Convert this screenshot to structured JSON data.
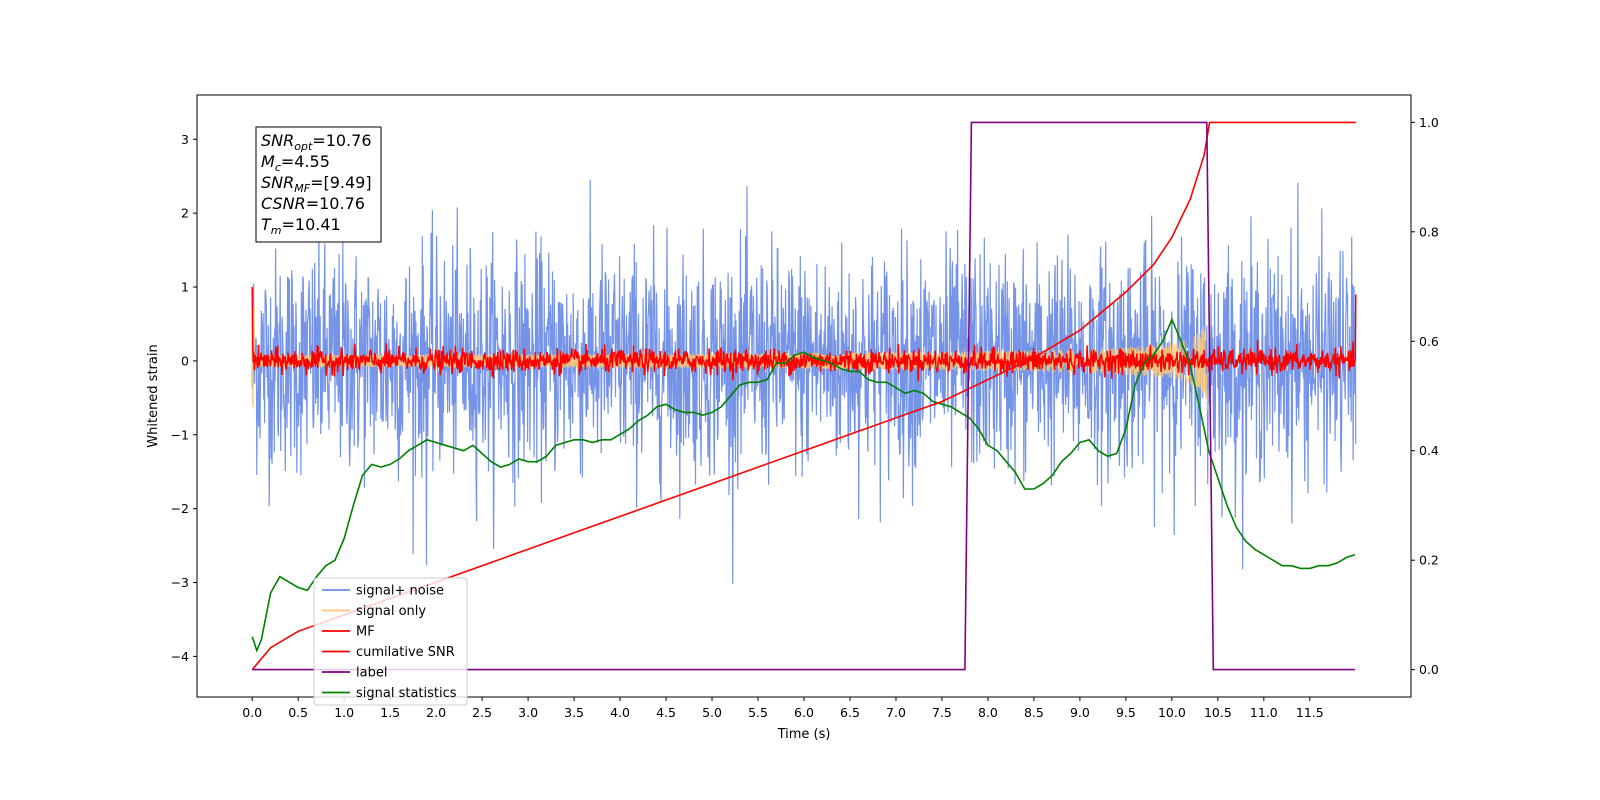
{
  "chart_data": {
    "type": "line",
    "title": "",
    "xlabel": "Time (s)",
    "ylabel": "Whitened strain",
    "xlim": [
      -0.6,
      12.6
    ],
    "ylim_left": [
      -4.55,
      3.6
    ],
    "ylim_right": [
      -0.05,
      1.05
    ],
    "grid": false,
    "legend_location": "lower-left",
    "x_ticks": [
      0.0,
      0.5,
      1.0,
      1.5,
      2.0,
      2.5,
      3.0,
      3.5,
      4.0,
      4.5,
      5.0,
      5.5,
      6.0,
      6.5,
      7.0,
      7.5,
      8.0,
      8.5,
      9.0,
      9.5,
      10.0,
      10.5,
      11.0,
      11.5
    ],
    "x_tick_labels": [
      "0.0",
      "0.5",
      "1.0",
      "1.5",
      "2.0",
      "2.5",
      "3.0",
      "3.5",
      "4.0",
      "4.5",
      "5.0",
      "5.5",
      "6.0",
      "6.5",
      "7.0",
      "7.5",
      "8.0",
      "8.5",
      "9.0",
      "9.5",
      "10.0",
      "10.5",
      "11.0",
      "11.5"
    ],
    "y_left_ticks": [
      3,
      2,
      1,
      0,
      -1,
      -2,
      -3,
      -4
    ],
    "y_left_tick_labels": [
      "3",
      "2",
      "1",
      "0",
      "−1",
      "−2",
      "−3",
      "−4"
    ],
    "y_right_ticks": [
      1.0,
      0.8,
      0.6,
      0.4,
      0.2,
      0.0
    ],
    "y_right_tick_labels": [
      "1.0",
      "0.8",
      "0.6",
      "0.4",
      "0.2",
      "0.0"
    ],
    "annotation": {
      "lines": [
        {
          "sym": "SNR",
          "sub": "opt",
          "val": "=10.76"
        },
        {
          "sym": "M",
          "sub": "c",
          "val": "=4.55"
        },
        {
          "sym": "SNR",
          "sub": "MF",
          "val": "=[9.49]"
        },
        {
          "sym": "CSNR",
          "sub": "",
          "val": "=10.76"
        },
        {
          "sym": "T",
          "sub": "m",
          "val": "=10.41"
        }
      ]
    },
    "series": [
      {
        "name": "signal+ noise",
        "color": "#6e8ee6",
        "axis": "left",
        "kind": "noise",
        "x_range": [
          0.0,
          12.0
        ],
        "spread": 0.75
      },
      {
        "name": "signal only",
        "color": "#ffc870",
        "axis": "left",
        "kind": "chirp",
        "x_range": [
          0.0,
          10.41
        ]
      },
      {
        "name": "MF",
        "color": "#ff0000",
        "axis": "left",
        "kind": "mf-noise",
        "x_range": [
          0.0,
          12.0
        ]
      },
      {
        "name": "cumilative SNR",
        "color": "#ff0000",
        "axis": "right",
        "x": [
          0.0,
          0.2,
          0.5,
          1.0,
          1.5,
          2.0,
          2.5,
          3.0,
          3.5,
          4.0,
          4.5,
          5.0,
          5.5,
          6.0,
          6.5,
          7.0,
          7.5,
          8.0,
          8.5,
          9.0,
          9.5,
          9.8,
          10.0,
          10.2,
          10.35,
          10.41,
          12.0
        ],
        "y": [
          0.0,
          0.04,
          0.07,
          0.1,
          0.13,
          0.16,
          0.19,
          0.22,
          0.25,
          0.28,
          0.31,
          0.34,
          0.37,
          0.4,
          0.43,
          0.46,
          0.49,
          0.53,
          0.57,
          0.62,
          0.69,
          0.74,
          0.79,
          0.86,
          0.94,
          1.0,
          1.0
        ]
      },
      {
        "name": "label",
        "color": "#800080",
        "axis": "right",
        "x": [
          0.0,
          7.75,
          7.82,
          10.38,
          10.45,
          11.99
        ],
        "y": [
          0.0,
          0.0,
          1.0,
          1.0,
          0.0,
          0.0
        ]
      },
      {
        "name": "signal statistics",
        "color": "#008000",
        "axis": "right",
        "x": [
          0.0,
          0.05,
          0.1,
          0.2,
          0.3,
          0.4,
          0.5,
          0.6,
          0.7,
          0.8,
          0.9,
          1.0,
          1.1,
          1.2,
          1.3,
          1.4,
          1.5,
          1.6,
          1.7,
          1.8,
          1.9,
          2.0,
          2.1,
          2.2,
          2.3,
          2.4,
          2.5,
          2.6,
          2.7,
          2.8,
          2.9,
          3.0,
          3.1,
          3.2,
          3.3,
          3.4,
          3.5,
          3.6,
          3.7,
          3.8,
          3.9,
          4.0,
          4.1,
          4.2,
          4.3,
          4.4,
          4.5,
          4.6,
          4.7,
          4.8,
          4.9,
          5.0,
          5.1,
          5.2,
          5.3,
          5.4,
          5.5,
          5.6,
          5.7,
          5.8,
          5.9,
          6.0,
          6.1,
          6.2,
          6.3,
          6.4,
          6.5,
          6.6,
          6.7,
          6.8,
          6.9,
          7.0,
          7.1,
          7.2,
          7.3,
          7.4,
          7.5,
          7.6,
          7.7,
          7.8,
          7.9,
          8.0,
          8.1,
          8.2,
          8.3,
          8.4,
          8.5,
          8.6,
          8.7,
          8.8,
          8.9,
          9.0,
          9.1,
          9.2,
          9.3,
          9.4,
          9.5,
          9.6,
          9.7,
          9.8,
          9.9,
          10.0,
          10.1,
          10.2,
          10.3,
          10.4,
          10.5,
          10.6,
          10.7,
          10.8,
          10.9,
          11.0,
          11.1,
          11.2,
          11.3,
          11.4,
          11.5,
          11.6,
          11.7,
          11.8,
          11.9,
          11.99
        ],
        "y": [
          0.06,
          0.035,
          0.055,
          0.14,
          0.17,
          0.16,
          0.15,
          0.145,
          0.17,
          0.19,
          0.2,
          0.24,
          0.3,
          0.355,
          0.375,
          0.37,
          0.375,
          0.385,
          0.4,
          0.41,
          0.42,
          0.415,
          0.41,
          0.405,
          0.4,
          0.41,
          0.395,
          0.38,
          0.37,
          0.375,
          0.385,
          0.38,
          0.38,
          0.39,
          0.41,
          0.415,
          0.42,
          0.42,
          0.415,
          0.42,
          0.42,
          0.43,
          0.44,
          0.455,
          0.465,
          0.48,
          0.485,
          0.475,
          0.47,
          0.47,
          0.465,
          0.47,
          0.48,
          0.5,
          0.52,
          0.525,
          0.525,
          0.53,
          0.56,
          0.56,
          0.575,
          0.58,
          0.57,
          0.565,
          0.56,
          0.55,
          0.545,
          0.545,
          0.53,
          0.525,
          0.525,
          0.515,
          0.505,
          0.51,
          0.505,
          0.49,
          0.485,
          0.48,
          0.47,
          0.46,
          0.44,
          0.41,
          0.4,
          0.38,
          0.36,
          0.33,
          0.33,
          0.34,
          0.355,
          0.38,
          0.395,
          0.415,
          0.42,
          0.4,
          0.39,
          0.395,
          0.44,
          0.52,
          0.56,
          0.575,
          0.6,
          0.64,
          0.6,
          0.555,
          0.48,
          0.4,
          0.35,
          0.3,
          0.26,
          0.235,
          0.22,
          0.21,
          0.2,
          0.19,
          0.19,
          0.185,
          0.185,
          0.19,
          0.19,
          0.195,
          0.205,
          0.21
        ]
      }
    ]
  }
}
